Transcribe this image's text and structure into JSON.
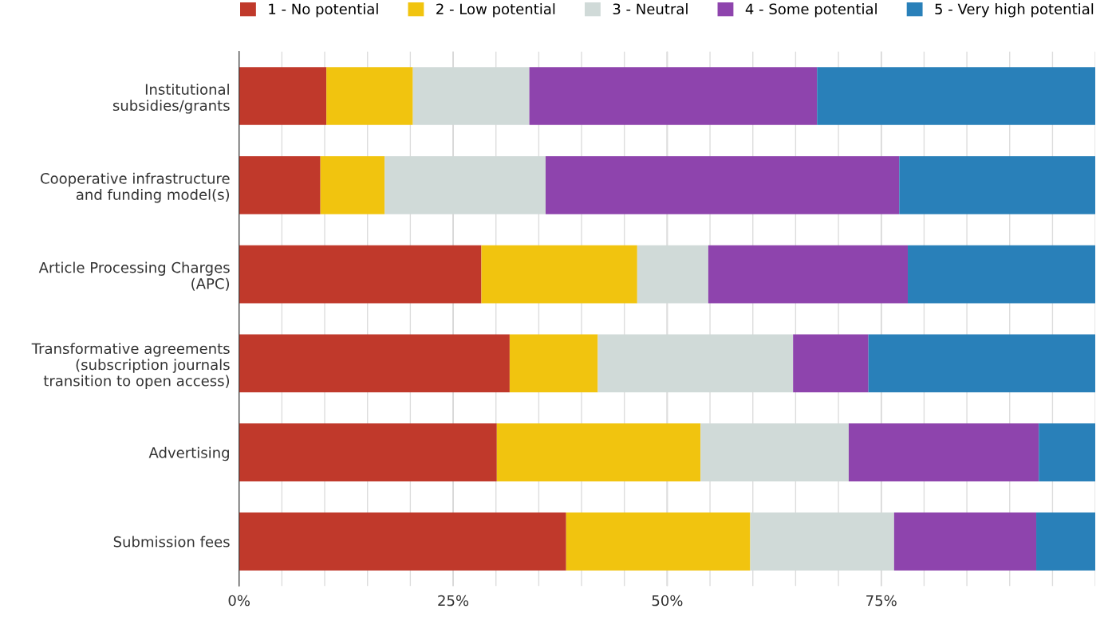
{
  "chart_data": {
    "type": "bar",
    "orientation": "horizontal",
    "stacked": true,
    "categories": [
      "Institutional\nsubsidies/grants",
      "Cooperative infrastructure\nand funding model(s)",
      "Article Processing Charges\n(APC)",
      "Transformative agreements\n(subscription journals\ntransition to open access)",
      "Advertising",
      "Submission fees"
    ],
    "series": [
      {
        "name": "1 - No potential",
        "color": "#c0392b",
        "values": [
          10.2,
          9.5,
          28.3,
          31.6,
          30.1,
          38.2
        ]
      },
      {
        "name": "2 - Low potential",
        "color": "#f1c40f",
        "values": [
          10.1,
          7.5,
          18.2,
          10.3,
          23.8,
          21.5
        ]
      },
      {
        "name": "3 - Neutral",
        "color": "#d0dad8",
        "values": [
          13.6,
          18.8,
          8.3,
          22.8,
          17.3,
          16.8
        ]
      },
      {
        "name": "4 - Some potential",
        "color": "#8e44ad",
        "values": [
          33.6,
          41.3,
          23.3,
          8.8,
          22.2,
          16.6
        ]
      },
      {
        "name": "5 - Very high potential",
        "color": "#2980b9",
        "values": [
          32.5,
          22.9,
          21.9,
          26.5,
          6.6,
          6.9
        ]
      }
    ],
    "xlim": [
      0,
      100
    ],
    "xticks": [
      {
        "value": 0,
        "label": "0%"
      },
      {
        "value": 5,
        "label": null
      },
      {
        "value": 10,
        "label": null
      },
      {
        "value": 15,
        "label": null
      },
      {
        "value": 20,
        "label": null
      },
      {
        "value": 25,
        "label": "25%"
      },
      {
        "value": 30,
        "label": null
      },
      {
        "value": 35,
        "label": null
      },
      {
        "value": 40,
        "label": null
      },
      {
        "value": 45,
        "label": null
      },
      {
        "value": 50,
        "label": "50%"
      },
      {
        "value": 55,
        "label": null
      },
      {
        "value": 60,
        "label": null
      },
      {
        "value": 65,
        "label": null
      },
      {
        "value": 70,
        "label": null
      },
      {
        "value": 75,
        "label": "75%"
      },
      {
        "value": 80,
        "label": null
      },
      {
        "value": 85,
        "label": null
      },
      {
        "value": 90,
        "label": null
      },
      {
        "value": 95,
        "label": null
      },
      {
        "value": 100,
        "label": null
      }
    ],
    "grid": "x",
    "legend": "top"
  }
}
